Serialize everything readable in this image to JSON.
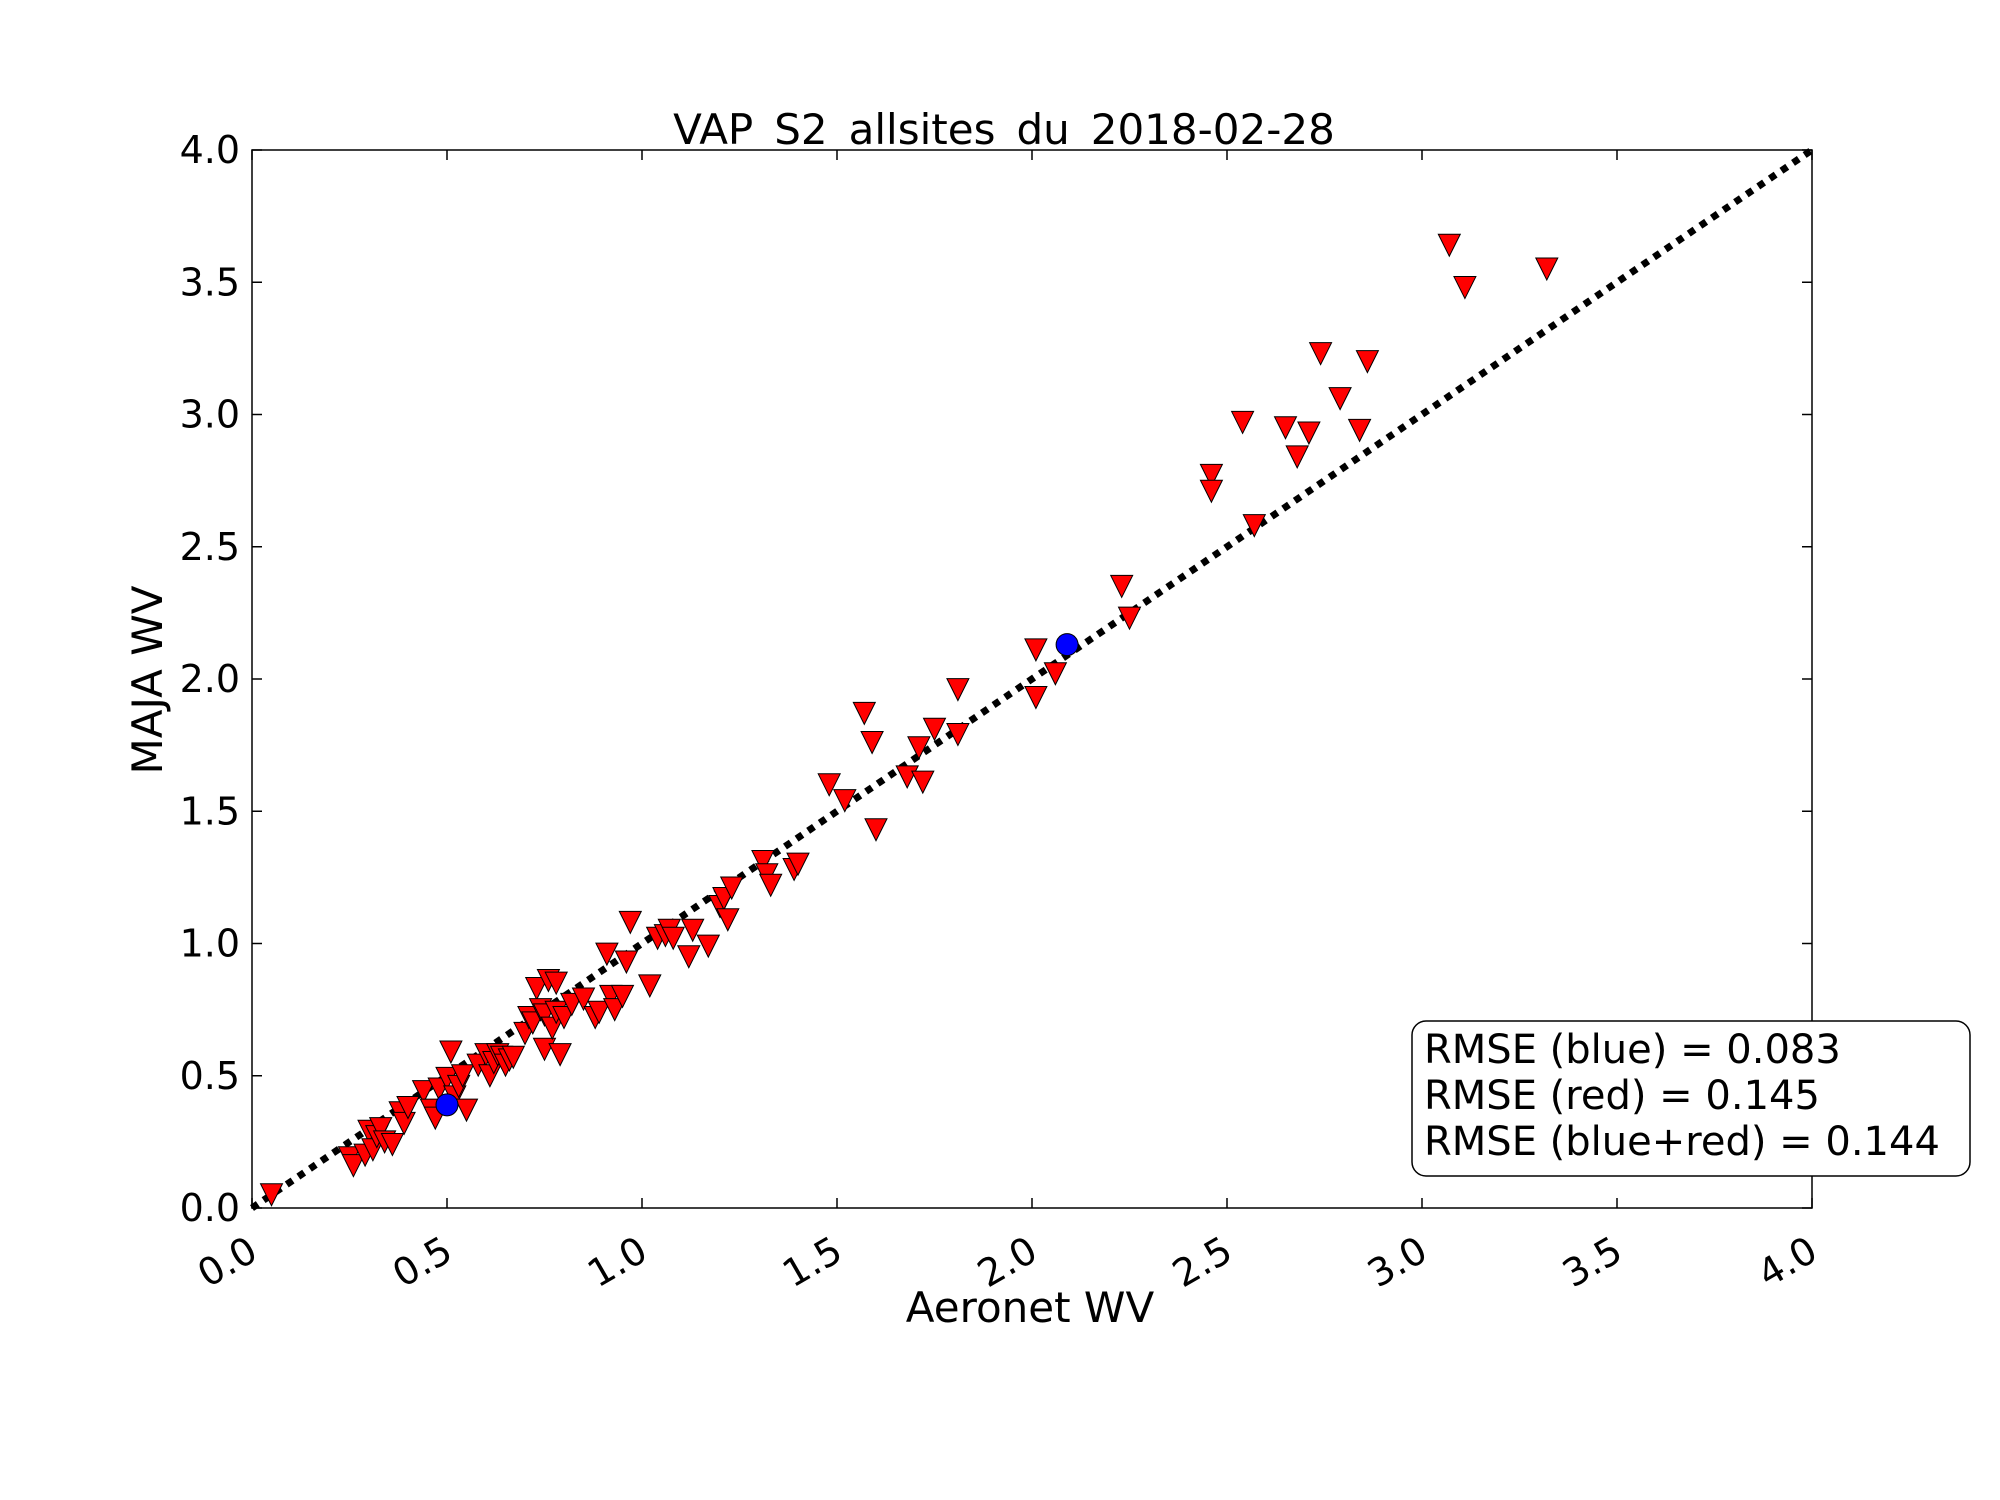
{
  "chart_data": {
    "type": "scatter",
    "title": "VAP_S2_allsites_du_2018-02-28",
    "xlabel": "Aeronet WV",
    "ylabel": "MAJA WV",
    "xlim": [
      0,
      4
    ],
    "ylim": [
      0,
      4
    ],
    "x_ticks": [
      "0.0",
      "0.5",
      "1.0",
      "1.5",
      "2.0",
      "2.5",
      "3.0",
      "3.5",
      "4.0"
    ],
    "y_ticks": [
      "0.0",
      "0.5",
      "1.0",
      "1.5",
      "2.0",
      "2.5",
      "3.0",
      "3.5",
      "4.0"
    ],
    "grid": false,
    "identity_line": {
      "style": "dotted",
      "color": "#000000"
    },
    "series": [
      {
        "marker": "triangle-down",
        "color": "#ff0000",
        "points": [
          [
            0.05,
            0.05
          ],
          [
            0.25,
            0.19
          ],
          [
            0.26,
            0.16
          ],
          [
            0.29,
            0.2
          ],
          [
            0.3,
            0.29
          ],
          [
            0.31,
            0.22
          ],
          [
            0.32,
            0.27
          ],
          [
            0.33,
            0.3
          ],
          [
            0.34,
            0.25
          ],
          [
            0.36,
            0.24
          ],
          [
            0.38,
            0.36
          ],
          [
            0.39,
            0.32
          ],
          [
            0.4,
            0.38
          ],
          [
            0.44,
            0.44
          ],
          [
            0.46,
            0.37
          ],
          [
            0.47,
            0.34
          ],
          [
            0.48,
            0.45
          ],
          [
            0.5,
            0.49
          ],
          [
            0.51,
            0.59
          ],
          [
            0.52,
            0.42
          ],
          [
            0.53,
            0.46
          ],
          [
            0.54,
            0.5
          ],
          [
            0.55,
            0.37
          ],
          [
            0.58,
            0.54
          ],
          [
            0.6,
            0.58
          ],
          [
            0.61,
            0.5
          ],
          [
            0.62,
            0.55
          ],
          [
            0.63,
            0.58
          ],
          [
            0.64,
            0.57
          ],
          [
            0.65,
            0.54
          ],
          [
            0.66,
            0.56
          ],
          [
            0.67,
            0.57
          ],
          [
            0.7,
            0.66
          ],
          [
            0.71,
            0.72
          ],
          [
            0.72,
            0.7
          ],
          [
            0.73,
            0.83
          ],
          [
            0.74,
            0.75
          ],
          [
            0.75,
            0.6
          ],
          [
            0.75,
            0.73
          ],
          [
            0.76,
            0.86
          ],
          [
            0.77,
            0.68
          ],
          [
            0.78,
            0.85
          ],
          [
            0.78,
            0.74
          ],
          [
            0.79,
            0.58
          ],
          [
            0.8,
            0.72
          ],
          [
            0.82,
            0.77
          ],
          [
            0.85,
            0.79
          ],
          [
            0.88,
            0.72
          ],
          [
            0.89,
            0.74
          ],
          [
            0.91,
            0.96
          ],
          [
            0.92,
            0.8
          ],
          [
            0.93,
            0.75
          ],
          [
            0.95,
            0.8
          ],
          [
            0.96,
            0.93
          ],
          [
            0.97,
            1.08
          ],
          [
            1.02,
            0.84
          ],
          [
            1.04,
            1.02
          ],
          [
            1.06,
            1.03
          ],
          [
            1.07,
            1.05
          ],
          [
            1.08,
            1.02
          ],
          [
            1.12,
            0.95
          ],
          [
            1.13,
            1.05
          ],
          [
            1.17,
            0.99
          ],
          [
            1.2,
            1.14
          ],
          [
            1.21,
            1.17
          ],
          [
            1.22,
            1.09
          ],
          [
            1.23,
            1.21
          ],
          [
            1.31,
            1.31
          ],
          [
            1.32,
            1.26
          ],
          [
            1.33,
            1.22
          ],
          [
            1.39,
            1.28
          ],
          [
            1.4,
            1.3
          ],
          [
            1.48,
            1.6
          ],
          [
            1.52,
            1.54
          ],
          [
            1.57,
            1.87
          ],
          [
            1.59,
            1.76
          ],
          [
            1.6,
            1.43
          ],
          [
            1.68,
            1.63
          ],
          [
            1.71,
            1.74
          ],
          [
            1.72,
            1.61
          ],
          [
            1.75,
            1.81
          ],
          [
            1.81,
            1.96
          ],
          [
            1.81,
            1.79
          ],
          [
            2.01,
            2.11
          ],
          [
            2.01,
            1.93
          ],
          [
            2.06,
            2.02
          ],
          [
            2.23,
            2.35
          ],
          [
            2.25,
            2.23
          ],
          [
            2.46,
            2.77
          ],
          [
            2.46,
            2.71
          ],
          [
            2.54,
            2.97
          ],
          [
            2.57,
            2.58
          ],
          [
            2.65,
            2.95
          ],
          [
            2.68,
            2.84
          ],
          [
            2.71,
            2.93
          ],
          [
            2.74,
            3.23
          ],
          [
            2.79,
            3.06
          ],
          [
            2.84,
            2.94
          ],
          [
            2.86,
            3.2
          ],
          [
            3.07,
            3.64
          ],
          [
            3.11,
            3.48
          ],
          [
            3.32,
            3.55
          ]
        ]
      },
      {
        "marker": "circle",
        "color": "#0000ff",
        "points": [
          [
            0.5,
            0.39
          ],
          [
            2.09,
            2.13
          ]
        ]
      }
    ],
    "annotations": [
      "RMSE (blue) = 0.083",
      "RMSE (red) = 0.145",
      "RMSE (blue+red) = 0.144"
    ],
    "annotation_placement": "bottom-right"
  }
}
